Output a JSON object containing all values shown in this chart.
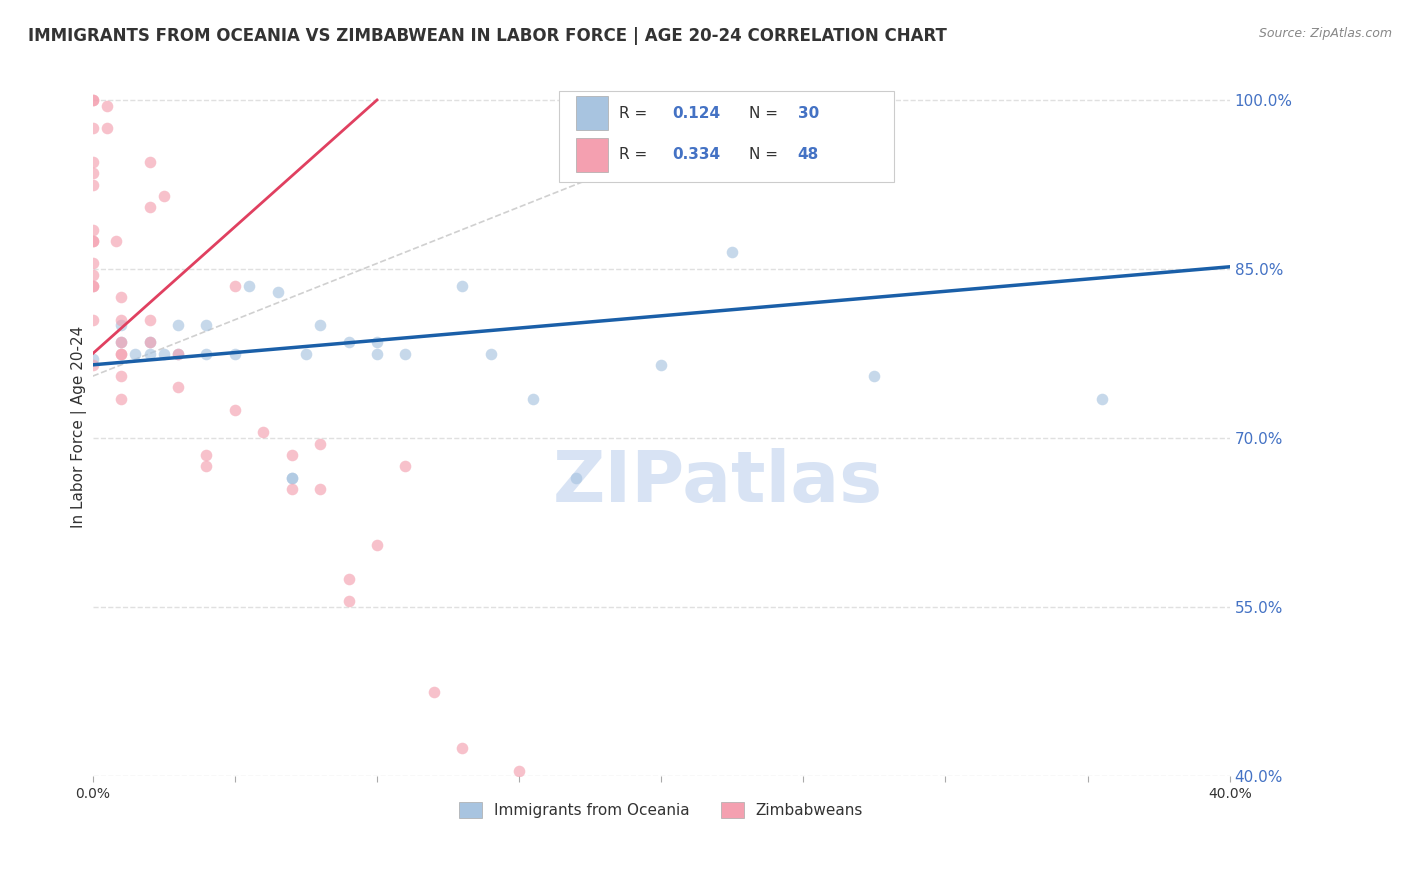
{
  "title": "IMMIGRANTS FROM OCEANIA VS ZIMBABWEAN IN LABOR FORCE | AGE 20-24 CORRELATION CHART",
  "source": "Source: ZipAtlas.com",
  "ylabel": "In Labor Force | Age 20-24",
  "xlim": [
    0.0,
    0.4
  ],
  "ylim": [
    0.4,
    1.02
  ],
  "xticks": [
    0.0,
    0.05,
    0.1,
    0.15,
    0.2,
    0.25,
    0.3,
    0.35,
    0.4
  ],
  "xticklabels": [
    "0.0%",
    "",
    "",
    "",
    "",
    "",
    "",
    "",
    "40.0%"
  ],
  "yticks_right": [
    1.0,
    0.85,
    0.7,
    0.55,
    0.4
  ],
  "ytick_labels_right": [
    "100.0%",
    "85.0%",
    "70.0%",
    "55.0%",
    "40.0%"
  ],
  "blue_scatter_x": [
    0.0,
    0.01,
    0.01,
    0.015,
    0.02,
    0.02,
    0.025,
    0.03,
    0.03,
    0.04,
    0.04,
    0.05,
    0.055,
    0.065,
    0.07,
    0.07,
    0.075,
    0.08,
    0.09,
    0.1,
    0.1,
    0.11,
    0.13,
    0.14,
    0.155,
    0.17,
    0.2,
    0.225,
    0.275,
    0.355
  ],
  "blue_scatter_y": [
    0.77,
    0.785,
    0.8,
    0.775,
    0.775,
    0.785,
    0.775,
    0.775,
    0.8,
    0.775,
    0.8,
    0.775,
    0.835,
    0.83,
    0.665,
    0.665,
    0.775,
    0.8,
    0.785,
    0.775,
    0.785,
    0.775,
    0.835,
    0.775,
    0.735,
    0.665,
    0.765,
    0.865,
    0.755,
    0.735
  ],
  "pink_scatter_x": [
    0.0,
    0.0,
    0.0,
    0.0,
    0.0,
    0.0,
    0.0,
    0.0,
    0.0,
    0.0,
    0.0,
    0.0,
    0.0,
    0.0,
    0.0,
    0.005,
    0.005,
    0.008,
    0.01,
    0.01,
    0.01,
    0.01,
    0.01,
    0.01,
    0.01,
    0.02,
    0.02,
    0.02,
    0.02,
    0.025,
    0.03,
    0.03,
    0.04,
    0.04,
    0.05,
    0.05,
    0.06,
    0.07,
    0.07,
    0.08,
    0.08,
    0.09,
    0.09,
    0.1,
    0.11,
    0.12,
    0.13,
    0.15
  ],
  "pink_scatter_y": [
    1.0,
    1.0,
    0.975,
    0.945,
    0.935,
    0.925,
    0.885,
    0.875,
    0.875,
    0.855,
    0.845,
    0.835,
    0.835,
    0.805,
    0.765,
    0.995,
    0.975,
    0.875,
    0.825,
    0.805,
    0.785,
    0.775,
    0.775,
    0.755,
    0.735,
    0.945,
    0.905,
    0.805,
    0.785,
    0.915,
    0.775,
    0.745,
    0.685,
    0.675,
    0.835,
    0.725,
    0.705,
    0.685,
    0.655,
    0.695,
    0.655,
    0.575,
    0.555,
    0.605,
    0.675,
    0.475,
    0.425,
    0.405
  ],
  "blue_line_x": [
    0.0,
    0.4
  ],
  "blue_line_y": [
    0.765,
    0.852
  ],
  "pink_line_x": [
    0.0,
    0.1
  ],
  "pink_line_y": [
    0.775,
    1.0
  ],
  "ref_line_x": [
    0.0,
    0.245
  ],
  "ref_line_y": [
    0.755,
    1.0
  ],
  "blue_color": "#a8c4e0",
  "pink_color": "#f4a0b0",
  "blue_line_color": "#1a5fa8",
  "pink_line_color": "#e04060",
  "ref_line_color": "#d0d0d0",
  "watermark": "ZIPatlas",
  "watermark_color": "#c8d8f0",
  "legend_r_color": "#4472c4",
  "legend_n_color": "#4472c4",
  "title_fontsize": 12,
  "axis_label_fontsize": 11,
  "tick_fontsize": 10,
  "scatter_size": 70,
  "scatter_alpha": 0.65,
  "grid_color": "#e0e0e0",
  "grid_style": "--",
  "background_color": "#ffffff"
}
